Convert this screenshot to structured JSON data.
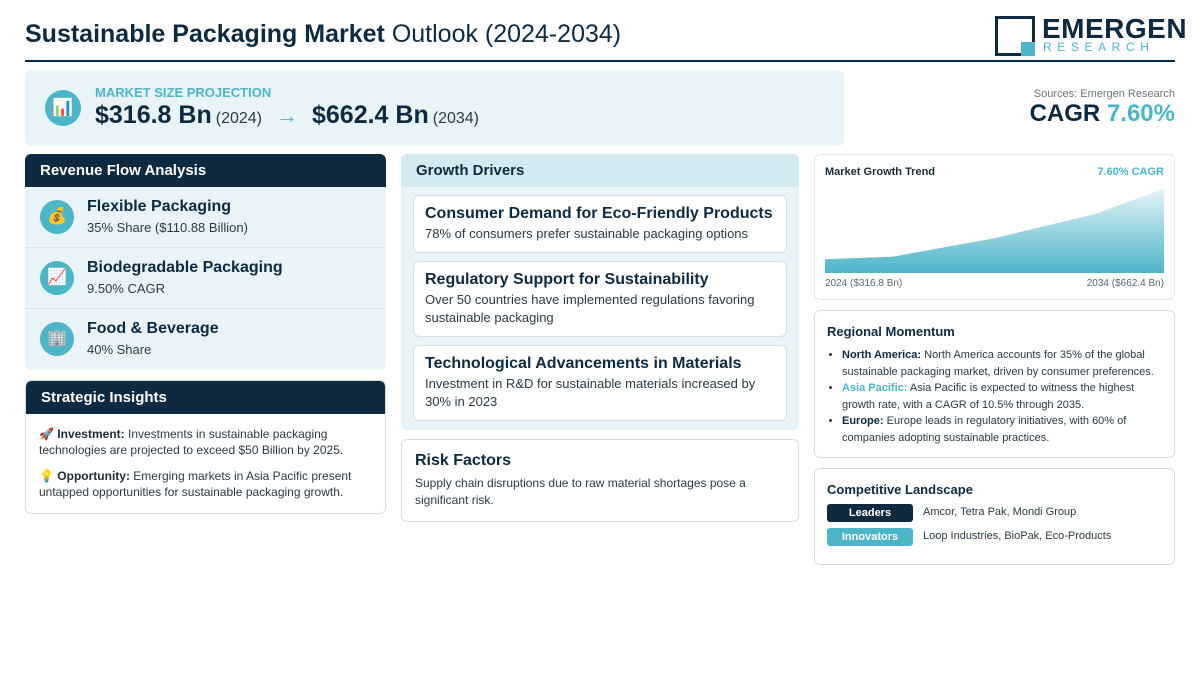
{
  "header": {
    "title_bold": "Sustainable Packaging Market",
    "title_rest": "Outlook (2024-2034)",
    "logo_main": "EMERGEN",
    "logo_sub": "RESEARCH"
  },
  "projection": {
    "icon": "bar-chart-icon",
    "label": "MARKET SIZE PROJECTION",
    "start_value": "$316.8 Bn",
    "start_year": "(2024)",
    "arrow": "→",
    "end_value": "$662.4 Bn",
    "end_year": "(2034)"
  },
  "summary": {
    "sources": "Sources: Emergen Research",
    "cagr_label": "CAGR",
    "cagr_value": "7.60%"
  },
  "revenue_flow": {
    "title": "Revenue Flow Analysis",
    "items": [
      {
        "icon": "money-bag-icon",
        "glyph": "💰",
        "name": "Flexible Packaging",
        "value": "35% Share ($110.88 Billion)"
      },
      {
        "icon": "trend-up-icon",
        "glyph": "📈",
        "name": "Biodegradable Packaging",
        "value": "9.50% CAGR"
      },
      {
        "icon": "building-icon",
        "glyph": "🏢",
        "name": "Food & Beverage",
        "value": "40% Share"
      }
    ]
  },
  "strategic_insights": {
    "title": "Strategic Insights",
    "items": [
      {
        "icon": "rocket-icon",
        "glyph": "🚀",
        "label": "Investment:",
        "text": "Investments in sustainable packaging technologies are projected to exceed $50 Billion by 2025."
      },
      {
        "icon": "lightbulb-icon",
        "glyph": "💡",
        "label": "Opportunity:",
        "text": "Emerging markets in Asia Pacific present untapped opportunities for sustainable packaging growth."
      }
    ]
  },
  "growth_drivers": {
    "title": "Growth Drivers",
    "items": [
      {
        "title": "Consumer Demand for Eco-Friendly Products",
        "text": "78% of consumers prefer sustainable packaging options"
      },
      {
        "title": "Regulatory Support for Sustainability",
        "text": "Over 50 countries have implemented regulations favoring sustainable packaging"
      },
      {
        "title": "Technological Advancements in Materials",
        "text": "Investment in R&D for sustainable materials increased by 30% in 2023"
      }
    ]
  },
  "risk_factors": {
    "title": "Risk Factors",
    "text": "Supply chain disruptions due to raw material shortages pose a significant risk."
  },
  "trend": {
    "title": "Market Growth Trend",
    "cagr": "7.60% CAGR",
    "start_label": "2024 ($316.8 Bn)",
    "end_label": "2034 ($662.4 Bn)",
    "colors": {
      "fill_top": "#e6f4f7",
      "fill_bottom": "#4cb5c8"
    }
  },
  "chart_data": {
    "type": "area",
    "x": [
      2024,
      2026,
      2029,
      2032,
      2034
    ],
    "series": [
      {
        "values": [
          316.8,
          330,
          420,
          540,
          662.4
        ]
      }
    ],
    "xlabel": "",
    "ylabel": "",
    "ylim": [
      250,
      680
    ],
    "grid": false
  },
  "regional": {
    "title": "Regional Momentum",
    "items": [
      {
        "region": "North America:",
        "accent": false,
        "text": "North America accounts for 35% of the global sustainable packaging market, driven by consumer preferences."
      },
      {
        "region": "Asia Pacific:",
        "accent": true,
        "text": "Asia Pacific is expected to witness the highest growth rate, with a CAGR of 10.5% through 2035."
      },
      {
        "region": "Europe:",
        "accent": false,
        "text": "Europe leads in regulatory initiatives, with 60% of companies adopting sustainable practices."
      }
    ]
  },
  "competitive": {
    "title": "Competitive Landscape",
    "rows": [
      {
        "label": "Leaders",
        "color": "#0e2a40",
        "text": "Amcor, Tetra Pak, Mondi Group"
      },
      {
        "label": "Innovators",
        "color": "#4cb5c8",
        "text": "Loop Industries, BioPak, Eco-Products"
      }
    ]
  }
}
